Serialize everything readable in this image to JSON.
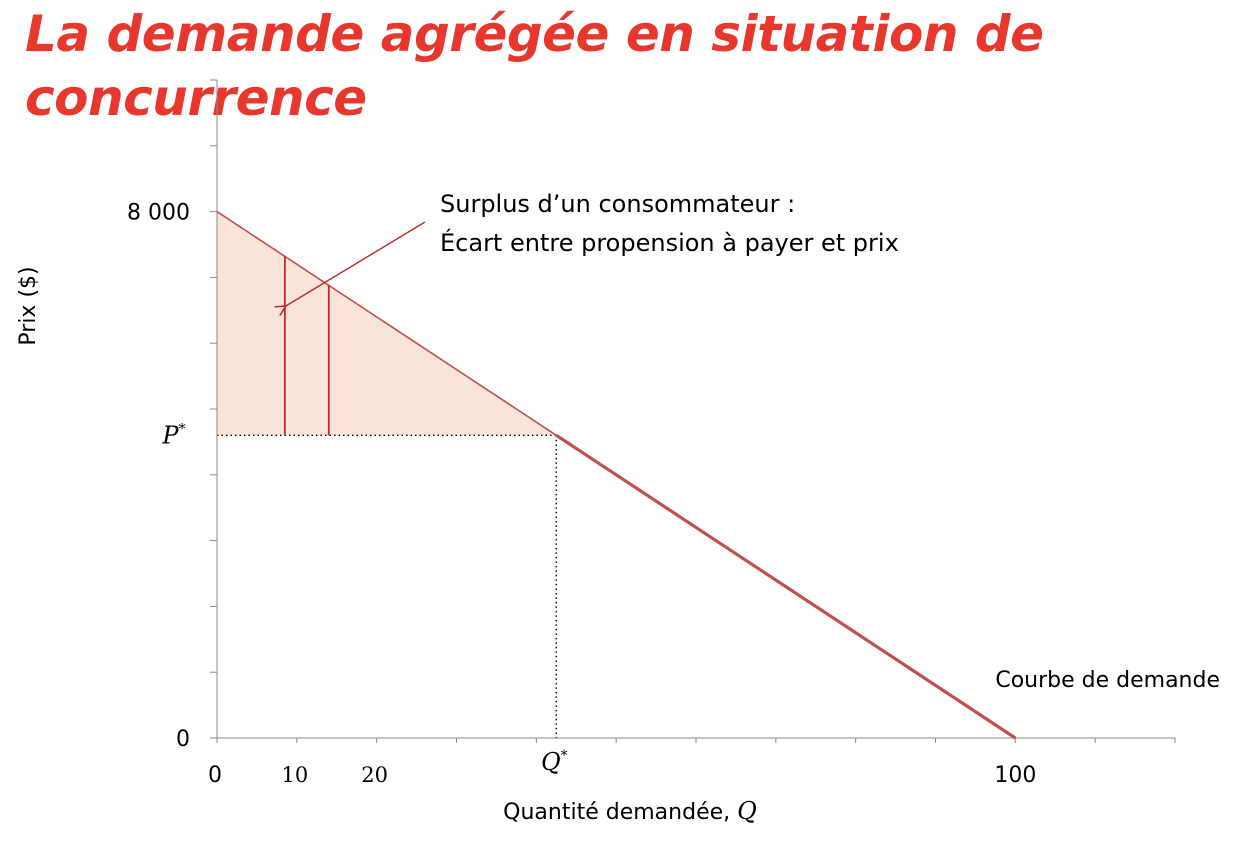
{
  "title": "La demande agrégée en situation de concurrence",
  "chart_data": {
    "type": "line",
    "xlabel": "Quantité demandée, Q",
    "ylabel": "Prix ($)",
    "xlim": [
      0,
      120
    ],
    "ylim": [
      0,
      10000
    ],
    "x_tick_labels": [
      {
        "value": 0,
        "label": "0"
      },
      {
        "value": 10,
        "label": "10"
      },
      {
        "value": 20,
        "label": "20"
      },
      {
        "value": 100,
        "label": "100"
      }
    ],
    "y_tick_labels": [
      {
        "value": 0,
        "label": "0"
      },
      {
        "value": 8000,
        "label": "8 000"
      }
    ],
    "series": [
      {
        "name": "Courbe de demande",
        "x": [
          0,
          100
        ],
        "y": [
          8000,
          0
        ]
      }
    ],
    "equilibrium": {
      "q_value": 42.5,
      "p_value": 4600,
      "q_label": "Q*",
      "p_label": "P*"
    },
    "surplus_bars": [
      {
        "x": 8.5,
        "y": 7320
      },
      {
        "x": 14,
        "y": 6880
      }
    ],
    "annotation": {
      "line1": "Surplus d’un consommateur :",
      "line2": "Écart entre propension à payer et prix"
    },
    "colors": {
      "title": "#e8372c",
      "demand_line": "#c0504d",
      "surplus_fill": "#f8e4d9",
      "surplus_bars": "#c0282d",
      "axis": "#888888"
    }
  }
}
